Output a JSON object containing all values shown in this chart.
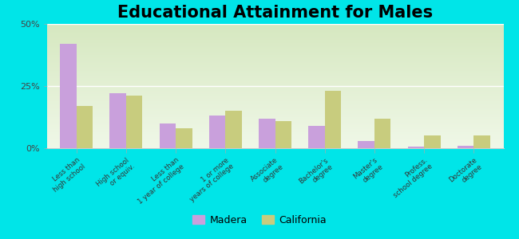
{
  "title": "Educational Attainment for Males",
  "categories": [
    "Less than\nhigh school",
    "High school\nor equiv.",
    "Less than\n1 year of college",
    "1 or more\nyears of college",
    "Associate\ndegree",
    "Bachelor's\ndegree",
    "Master's\ndegree",
    "Profess.\nschool degree",
    "Doctorate\ndegree"
  ],
  "madera": [
    42,
    22,
    10,
    13,
    12,
    9,
    3,
    0.5,
    1
  ],
  "california": [
    17,
    21,
    8,
    15,
    11,
    23,
    12,
    5,
    5
  ],
  "madera_color": "#c9a0dc",
  "california_color": "#c8cc7e",
  "outer_bg": "#00e5e8",
  "plot_bg_top": "#d6e8c0",
  "plot_bg_bottom": "#f0f8e8",
  "ylim": [
    0,
    50
  ],
  "yticks": [
    0,
    25,
    50
  ],
  "ytick_labels": [
    "0%",
    "25%",
    "50%"
  ],
  "title_fontsize": 15,
  "legend_madera": "Madera",
  "legend_california": "California"
}
